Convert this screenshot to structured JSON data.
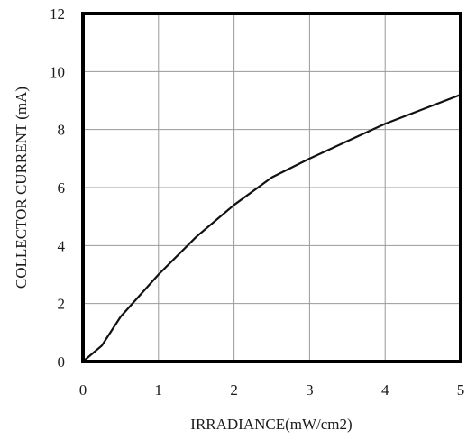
{
  "chart_data": {
    "type": "line",
    "xlabel": "IRRADIANCE(mW/cm2)",
    "ylabel": "COLLECTOR CURRENT (mA)",
    "xlim": [
      0,
      5
    ],
    "ylim": [
      0,
      12
    ],
    "x_ticks": [
      "0",
      "1",
      "2",
      "3",
      "4",
      "5"
    ],
    "y_ticks": [
      "0",
      "2",
      "4",
      "6",
      "8",
      "10",
      "12"
    ],
    "grid": true,
    "series": [
      {
        "x": [
          0,
          0.25,
          0.5,
          1.0,
          1.5,
          2.0,
          2.5,
          3.0,
          3.5,
          4.0,
          4.5,
          5.0
        ],
        "y": [
          0,
          0.55,
          1.55,
          3.0,
          4.3,
          5.4,
          6.35,
          7.0,
          7.6,
          8.2,
          8.7,
          9.2
        ]
      }
    ]
  }
}
